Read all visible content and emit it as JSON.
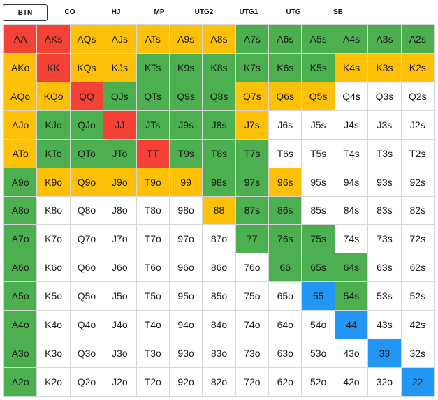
{
  "positions": [
    {
      "label": "BTN",
      "active": true
    },
    {
      "label": "CO",
      "active": false
    },
    {
      "label": "HJ",
      "active": false
    },
    {
      "label": "MP",
      "active": false
    },
    {
      "label": "UTG2",
      "active": false
    },
    {
      "label": "UTG1",
      "active": false
    },
    {
      "label": "UTG",
      "active": false
    },
    {
      "label": "SB",
      "active": false
    }
  ],
  "colors": {
    "R": "#f44336",
    "Y": "#ffc107",
    "G": "#4caf50",
    "B": "#2196f3",
    "W": "#ffffff"
  },
  "hands": [
    [
      "AA",
      "AKs",
      "AQs",
      "AJs",
      "ATs",
      "A9s",
      "A8s",
      "A7s",
      "A6s",
      "A5s",
      "A4s",
      "A3s",
      "A2s"
    ],
    [
      "AKo",
      "KK",
      "KQs",
      "KJs",
      "KTs",
      "K9s",
      "K8s",
      "K7s",
      "K6s",
      "K5s",
      "K4s",
      "K3s",
      "K2s"
    ],
    [
      "AQo",
      "KQo",
      "QQ",
      "QJs",
      "QTs",
      "Q9s",
      "Q8s",
      "Q7s",
      "Q6s",
      "Q5s",
      "Q4s",
      "Q3s",
      "Q2s"
    ],
    [
      "AJo",
      "KJo",
      "QJo",
      "JJ",
      "JTs",
      "J9s",
      "J8s",
      "J7s",
      "J6s",
      "J5s",
      "J4s",
      "J3s",
      "J2s"
    ],
    [
      "ATo",
      "KTo",
      "QTo",
      "JTo",
      "TT",
      "T9s",
      "T8s",
      "T7s",
      "T6s",
      "T5s",
      "T4s",
      "T3s",
      "T2s"
    ],
    [
      "A9o",
      "K9o",
      "Q9o",
      "J9o",
      "T9o",
      "99",
      "98s",
      "97s",
      "96s",
      "95s",
      "94s",
      "93s",
      "92s"
    ],
    [
      "A8o",
      "K8o",
      "Q8o",
      "J8o",
      "T8o",
      "98o",
      "88",
      "87s",
      "86s",
      "85s",
      "84s",
      "83s",
      "82s"
    ],
    [
      "A7o",
      "K7o",
      "Q7o",
      "J7o",
      "T7o",
      "97o",
      "87o",
      "77",
      "76s",
      "75s",
      "74s",
      "73s",
      "72s"
    ],
    [
      "A6o",
      "K6o",
      "Q6o",
      "J6o",
      "T6o",
      "96o",
      "86o",
      "76o",
      "66",
      "65s",
      "64s",
      "63s",
      "62s"
    ],
    [
      "A5o",
      "K5o",
      "Q5o",
      "J5o",
      "T5o",
      "95o",
      "85o",
      "75o",
      "65o",
      "55",
      "54s",
      "53s",
      "52s"
    ],
    [
      "A4o",
      "K4o",
      "Q4o",
      "J4o",
      "T4o",
      "94o",
      "84o",
      "74o",
      "64o",
      "54o",
      "44",
      "43s",
      "42s"
    ],
    [
      "A3o",
      "K3o",
      "Q3o",
      "J3o",
      "T3o",
      "93o",
      "83o",
      "73o",
      "63o",
      "53o",
      "43o",
      "33",
      "32s"
    ],
    [
      "A2o",
      "K2o",
      "Q2o",
      "J2o",
      "T2o",
      "92o",
      "82o",
      "72o",
      "62o",
      "52o",
      "42o",
      "32o",
      "22"
    ]
  ],
  "actions": [
    "RRYYYYYGGGGGG",
    "YRYYGGGGGGYYY",
    "YYRGGGGYYYWWW",
    "YGGRGGGYWWWWW",
    "YGGGRGGGWWWWW",
    "GYYYYYGGYWWWW",
    "GWWWWWYGGWWWW",
    "GWWWWWWGGGWWW",
    "GWWWWWWWGGGWW",
    "GWWWWWWWWBGWW",
    "GWWWWWWWWWBWW",
    "GWWWWWWWWWWBW",
    "GWWWWWWWWWWWB"
  ]
}
